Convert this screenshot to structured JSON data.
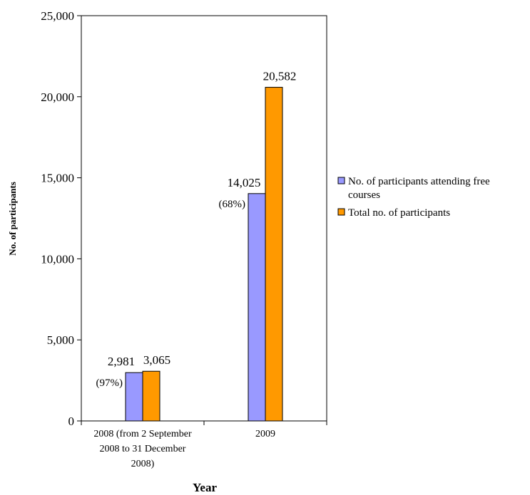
{
  "chart_data": {
    "type": "bar",
    "title": "",
    "xlabel": "Year",
    "ylabel": "No. of participants",
    "ylim": [
      0,
      25000
    ],
    "yticks": [
      0,
      5000,
      10000,
      15000,
      20000,
      25000
    ],
    "ytick_labels": [
      "0",
      "5,000",
      "10,000",
      "15,000",
      "20,000",
      "25,000"
    ],
    "grid": false,
    "legend_position": "right",
    "categories": [
      [
        "2008 (from 2 September",
        "2008 to 31 December",
        "2008)"
      ],
      [
        "2009"
      ]
    ],
    "series": [
      {
        "name": "No. of participants attending free courses",
        "legend_lines": [
          "No. of participants attending free",
          "courses"
        ],
        "color": "#9999ff",
        "values": [
          2981,
          14025
        ],
        "labels": [
          "2,981",
          "14,025"
        ],
        "percent_labels": [
          "(97%)",
          "(68%)"
        ]
      },
      {
        "name": "Total no. of participants",
        "legend_lines": [
          "Total no. of participants"
        ],
        "color": "#ff9900",
        "values": [
          3065,
          20582
        ],
        "labels": [
          "3,065",
          "20,582"
        ]
      }
    ]
  }
}
